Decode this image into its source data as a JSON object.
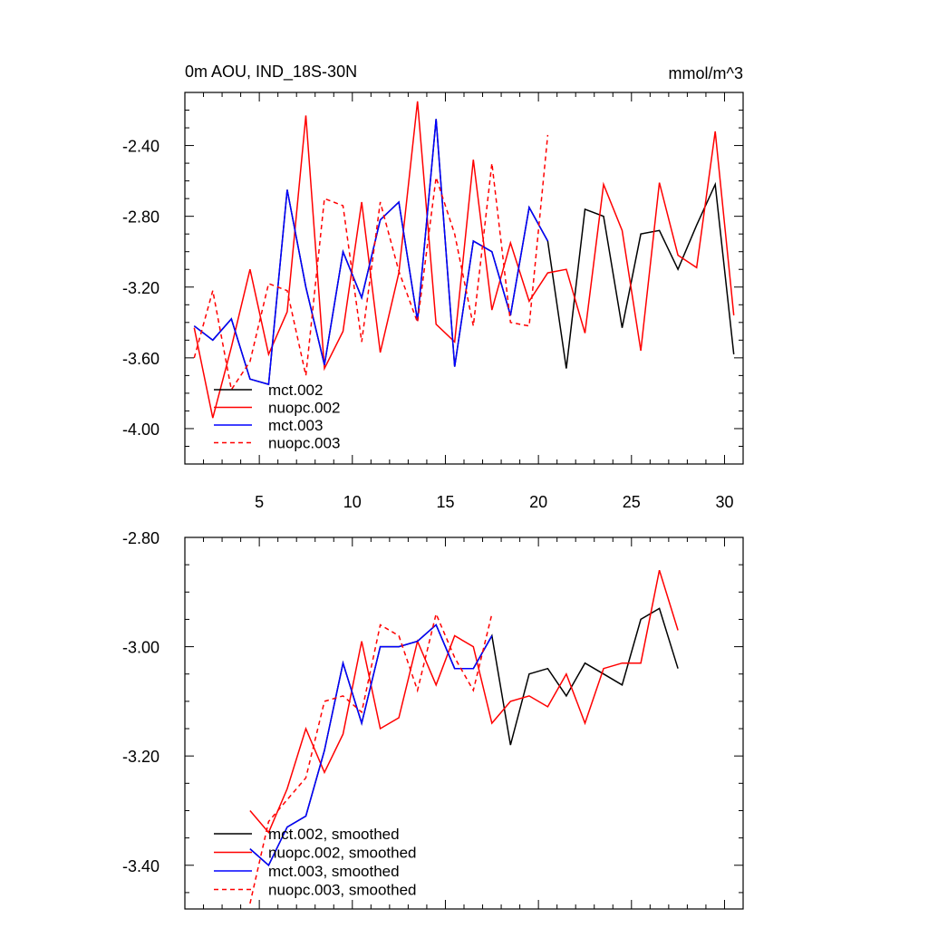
{
  "chart_data": [
    {
      "type": "line",
      "title": "0m AOU, IND_18S-30N",
      "units": "mmol/m^3",
      "xlim": [
        1,
        31
      ],
      "ylim": [
        -4.2,
        -2.1
      ],
      "xticks": [
        5,
        10,
        15,
        20,
        25,
        30
      ],
      "xtick_labels": [
        "5",
        "10",
        "15",
        "20",
        "25",
        "30"
      ],
      "yticks": [
        -4.0,
        -3.6,
        -3.2,
        -2.8,
        -2.4
      ],
      "ytick_labels": [
        "-4.00",
        "-3.60",
        "-3.20",
        "-2.80",
        "-2.40"
      ],
      "legend_position": "bottom-left",
      "series": [
        {
          "name": "mct.002",
          "color": "#000000",
          "dashed": false,
          "x": [
            1.5,
            2.5,
            3.5,
            4.5,
            5.5,
            6.5,
            7.5,
            8.5,
            9.5,
            10.5,
            11.5,
            12.5,
            13.5,
            14.5,
            15.5,
            16.5,
            17.5,
            18.5,
            19.5,
            20.5,
            21.5,
            22.5,
            23.5,
            24.5,
            25.5,
            26.5,
            27.5,
            28.5,
            29.5,
            30.5
          ],
          "y": [
            -3.42,
            -3.5,
            -3.38,
            -3.72,
            -3.75,
            -2.65,
            -3.2,
            -3.64,
            -3.0,
            -3.26,
            -2.82,
            -2.72,
            -3.39,
            -2.25,
            -3.65,
            -2.94,
            -3.0,
            -3.36,
            -2.75,
            -2.94,
            -3.66,
            -2.76,
            -2.8,
            -3.43,
            -2.9,
            -2.88,
            -3.1,
            -2.85,
            -2.62,
            -3.58
          ]
        },
        {
          "name": "nuopc.002",
          "color": "#ff0000",
          "dashed": false,
          "x": [
            1.5,
            2.5,
            3.5,
            4.5,
            5.5,
            6.5,
            7.5,
            8.5,
            9.5,
            10.5,
            11.5,
            12.5,
            13.5,
            14.5,
            15.5,
            16.5,
            17.5,
            18.5,
            19.5,
            20.5,
            21.5,
            22.5,
            23.5,
            24.5,
            25.5,
            26.5,
            27.5,
            28.5,
            29.5,
            30.5
          ],
          "y": [
            -3.43,
            -3.94,
            -3.54,
            -3.1,
            -3.58,
            -3.34,
            -2.23,
            -3.66,
            -3.45,
            -2.72,
            -3.57,
            -3.12,
            -2.15,
            -3.41,
            -3.51,
            -2.48,
            -3.33,
            -2.95,
            -3.28,
            -3.12,
            -3.1,
            -3.46,
            -2.62,
            -2.88,
            -3.56,
            -2.61,
            -3.02,
            -3.09,
            -2.32,
            -3.36
          ]
        },
        {
          "name": "mct.003",
          "color": "#0000ff",
          "dashed": false,
          "x": [
            1.5,
            2.5,
            3.5,
            4.5,
            5.5,
            6.5,
            7.5,
            8.5,
            9.5,
            10.5,
            11.5,
            12.5,
            13.5,
            14.5,
            15.5,
            16.5,
            17.5,
            18.5,
            19.5,
            20.5
          ],
          "y": [
            -3.42,
            -3.5,
            -3.38,
            -3.72,
            -3.75,
            -2.65,
            -3.2,
            -3.64,
            -3.0,
            -3.26,
            -2.82,
            -2.72,
            -3.39,
            -2.25,
            -3.65,
            -2.94,
            -3.0,
            -3.36,
            -2.75,
            -2.94
          ]
        },
        {
          "name": "nuopc.003",
          "color": "#ff0000",
          "dashed": true,
          "x": [
            1.5,
            2.5,
            3.5,
            4.5,
            5.5,
            6.5,
            7.5,
            8.5,
            9.5,
            10.5,
            11.5,
            12.5,
            13.5,
            14.5,
            15.5,
            16.5,
            17.5,
            18.5,
            19.5,
            20.5
          ],
          "y": [
            -3.6,
            -3.22,
            -3.78,
            -3.62,
            -3.18,
            -3.22,
            -3.7,
            -2.7,
            -2.74,
            -3.51,
            -2.72,
            -3.11,
            -3.4,
            -2.58,
            -2.9,
            -3.42,
            -2.5,
            -3.4,
            -3.42,
            -2.34
          ]
        }
      ]
    },
    {
      "type": "line",
      "title": "",
      "xlim": [
        1,
        31
      ],
      "ylim": [
        -3.48,
        -2.8
      ],
      "xticks": [
        5,
        10,
        15,
        20,
        25,
        30
      ],
      "yticks": [
        -3.4,
        -3.2,
        -3.0,
        -2.8
      ],
      "ytick_labels": [
        "-3.40",
        "-3.20",
        "-3.00",
        "-2.80"
      ],
      "legend_position": "bottom-left",
      "series": [
        {
          "name": "mct.002, smoothed",
          "color": "#000000",
          "dashed": false,
          "x": [
            4.5,
            5.5,
            6.5,
            7.5,
            8.5,
            9.5,
            10.5,
            11.5,
            12.5,
            13.5,
            14.5,
            15.5,
            16.5,
            17.5,
            18.5,
            19.5,
            20.5,
            21.5,
            22.5,
            23.5,
            24.5,
            25.5,
            26.5,
            27.5
          ],
          "y": [
            -3.37,
            -3.4,
            -3.33,
            -3.31,
            -3.19,
            -3.03,
            -3.14,
            -3.0,
            -3.0,
            -2.99,
            -2.96,
            -3.04,
            -3.04,
            -2.98,
            -3.18,
            -3.05,
            -3.04,
            -3.09,
            -3.03,
            -3.05,
            -3.07,
            -2.95,
            -2.93,
            -3.04
          ]
        },
        {
          "name": "nuopc.002, smoothed",
          "color": "#ff0000",
          "dashed": false,
          "x": [
            4.5,
            5.5,
            6.5,
            7.5,
            8.5,
            9.5,
            10.5,
            11.5,
            12.5,
            13.5,
            14.5,
            15.5,
            16.5,
            17.5,
            18.5,
            19.5,
            20.5,
            21.5,
            22.5,
            23.5,
            24.5,
            25.5,
            26.5,
            27.5
          ],
          "y": [
            -3.3,
            -3.34,
            -3.26,
            -3.15,
            -3.23,
            -3.16,
            -2.99,
            -3.15,
            -3.13,
            -2.99,
            -3.07,
            -2.98,
            -3.0,
            -3.14,
            -3.1,
            -3.09,
            -3.11,
            -3.05,
            -3.14,
            -3.04,
            -3.03,
            -3.03,
            -2.86,
            -2.97
          ]
        },
        {
          "name": "mct.003, smoothed",
          "color": "#0000ff",
          "dashed": false,
          "x": [
            4.5,
            5.5,
            6.5,
            7.5,
            8.5,
            9.5,
            10.5,
            11.5,
            12.5,
            13.5,
            14.5,
            15.5,
            16.5,
            17.5
          ],
          "y": [
            -3.37,
            -3.4,
            -3.33,
            -3.31,
            -3.19,
            -3.03,
            -3.14,
            -3.0,
            -3.0,
            -2.99,
            -2.96,
            -3.04,
            -3.04,
            -2.98
          ]
        },
        {
          "name": "nuopc.003, smoothed",
          "color": "#ff0000",
          "dashed": true,
          "x": [
            4.5,
            5.5,
            6.5,
            7.5,
            8.5,
            9.5,
            10.5,
            11.5,
            12.5,
            13.5,
            14.5,
            15.5,
            16.5,
            17.5
          ],
          "y": [
            -3.47,
            -3.32,
            -3.28,
            -3.24,
            -3.1,
            -3.09,
            -3.12,
            -2.96,
            -2.98,
            -3.08,
            -2.94,
            -3.02,
            -3.08,
            -2.94
          ]
        }
      ]
    }
  ]
}
